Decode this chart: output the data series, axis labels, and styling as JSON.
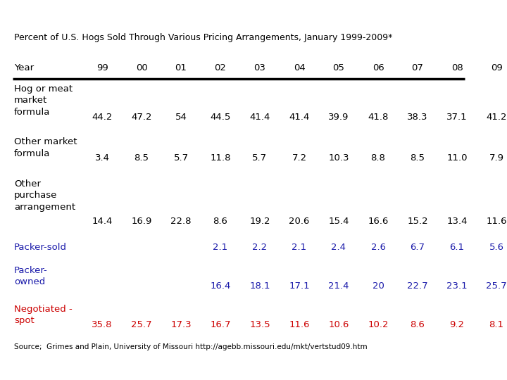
{
  "title": "Percent of U.S. Hogs Sold Through Various Pricing Arrangements, January 1999-2009*",
  "source": "Source;  Grimes and Plain, University of Missouri http://agebb.missouri.edu/mkt/vertstud09.htm",
  "columns": [
    "Year",
    "99",
    "00",
    "01",
    "02",
    "03",
    "04",
    "05",
    "06",
    "07",
    "08",
    "09"
  ],
  "rows": [
    {
      "label": [
        "Hog or meat",
        "market",
        "formula"
      ],
      "values": [
        "44.2",
        "47.2",
        "54",
        "44.5",
        "41.4",
        "41.4",
        "39.9",
        "41.8",
        "38.3",
        "37.1",
        "41.2"
      ],
      "label_color": "#000000",
      "value_color": "#000000"
    },
    {
      "label": [
        "Other market",
        "formula"
      ],
      "values": [
        "3.4",
        "8.5",
        "5.7",
        "11.8",
        "5.7",
        "7.2",
        "10.3",
        "8.8",
        "8.5",
        "11.0",
        "7.9"
      ],
      "label_color": "#000000",
      "value_color": "#000000"
    },
    {
      "label": [
        "Other",
        "purchase",
        "arrangement"
      ],
      "values": [
        "14.4",
        "16.9",
        "22.8",
        "8.6",
        "19.2",
        "20.6",
        "15.4",
        "16.6",
        "15.2",
        "13.4",
        "11.6"
      ],
      "label_color": "#000000",
      "value_color": "#000000"
    },
    {
      "label": [
        "Packer-sold"
      ],
      "values": [
        "",
        "",
        "",
        "2.1",
        "2.2",
        "2.1",
        "2.4",
        "2.6",
        "6.7",
        "6.1",
        "5.6"
      ],
      "label_color": "#1a1aaa",
      "value_color": "#1a1aaa"
    },
    {
      "label": [
        "Packer-",
        "owned"
      ],
      "values": [
        "",
        "",
        "",
        "16.4",
        "18.1",
        "17.1",
        "21.4",
        "20",
        "22.7",
        "23.1",
        "25.7"
      ],
      "label_color": "#1a1aaa",
      "value_color": "#1a1aaa"
    },
    {
      "label": [
        "Negotiated -",
        "spot"
      ],
      "values": [
        "35.8",
        "25.7",
        "17.3",
        "16.7",
        "13.5",
        "11.6",
        "10.6",
        "10.2",
        "8.6",
        "9.2",
        "8.1"
      ],
      "label_color": "#cc0000",
      "value_color": "#cc0000"
    }
  ],
  "background_color": "#ffffff",
  "header_line_color": "#000000",
  "title_fontsize": 9.0,
  "header_fontsize": 9.5,
  "cell_fontsize": 9.5,
  "source_fontsize": 7.5
}
